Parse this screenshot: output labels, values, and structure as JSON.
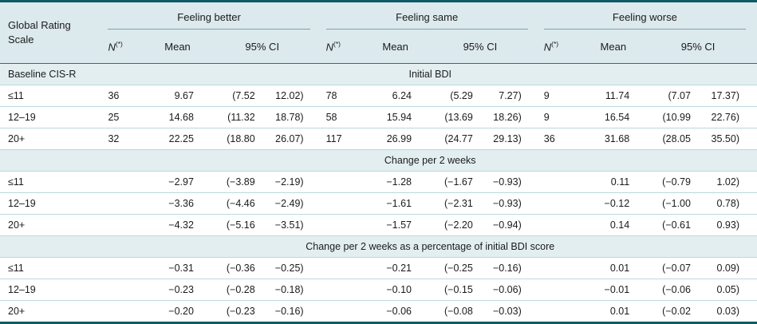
{
  "table": {
    "corner_label": "Global Rating Scale",
    "groups": [
      {
        "key": "better",
        "label": "Feeling better"
      },
      {
        "key": "same",
        "label": "Feeling same"
      },
      {
        "key": "worse",
        "label": "Feeling worse"
      }
    ],
    "sub_headers": {
      "n": "N",
      "n_sup": "(*)",
      "mean": "Mean",
      "ci": "95% CI"
    },
    "sections": [
      {
        "left_label": "Baseline CIS-R",
        "title": "Initial BDI",
        "rows": [
          {
            "label": "≤11",
            "groups": [
              {
                "n": "36",
                "mean": "9.67",
                "ci_lo": "(7.52",
                "ci_hi": "12.02)"
              },
              {
                "n": "78",
                "mean": "6.24",
                "ci_lo": "(5.29",
                "ci_hi": "7.27)"
              },
              {
                "n": "9",
                "mean": "11.74",
                "ci_lo": "(7.07",
                "ci_hi": "17.37)"
              }
            ]
          },
          {
            "label": "12–19",
            "groups": [
              {
                "n": "25",
                "mean": "14.68",
                "ci_lo": "(11.32",
                "ci_hi": "18.78)"
              },
              {
                "n": "58",
                "mean": "15.94",
                "ci_lo": "(13.69",
                "ci_hi": "18.26)"
              },
              {
                "n": "9",
                "mean": "16.54",
                "ci_lo": "(10.99",
                "ci_hi": "22.76)"
              }
            ]
          },
          {
            "label": "20+",
            "groups": [
              {
                "n": "32",
                "mean": "22.25",
                "ci_lo": "(18.80",
                "ci_hi": "26.07)"
              },
              {
                "n": "117",
                "mean": "26.99",
                "ci_lo": "(24.77",
                "ci_hi": "29.13)"
              },
              {
                "n": "36",
                "mean": "31.68",
                "ci_lo": "(28.05",
                "ci_hi": "35.50)"
              }
            ]
          }
        ]
      },
      {
        "left_label": "",
        "title": "Change per 2 weeks",
        "rows": [
          {
            "label": "≤11",
            "groups": [
              {
                "n": "",
                "mean": "−2.97",
                "ci_lo": "(−3.89",
                "ci_hi": "−2.19)"
              },
              {
                "n": "",
                "mean": "−1.28",
                "ci_lo": "(−1.67",
                "ci_hi": "−0.93)"
              },
              {
                "n": "",
                "mean": "0.11",
                "ci_lo": "(−0.79",
                "ci_hi": "1.02)"
              }
            ]
          },
          {
            "label": "12–19",
            "groups": [
              {
                "n": "",
                "mean": "−3.36",
                "ci_lo": "(−4.46",
                "ci_hi": "−2.49)"
              },
              {
                "n": "",
                "mean": "−1.61",
                "ci_lo": "(−2.31",
                "ci_hi": "−0.93)"
              },
              {
                "n": "",
                "mean": "−0.12",
                "ci_lo": "(−1.00",
                "ci_hi": "0.78)"
              }
            ]
          },
          {
            "label": "20+",
            "groups": [
              {
                "n": "",
                "mean": "−4.32",
                "ci_lo": "(−5.16",
                "ci_hi": "−3.51)"
              },
              {
                "n": "",
                "mean": "−1.57",
                "ci_lo": "(−2.20",
                "ci_hi": "−0.94)"
              },
              {
                "n": "",
                "mean": "0.14",
                "ci_lo": "(−0.61",
                "ci_hi": "0.93)"
              }
            ]
          }
        ]
      },
      {
        "left_label": "",
        "title": "Change per 2 weeks as a percentage of initial BDI score",
        "rows": [
          {
            "label": "≤11",
            "groups": [
              {
                "n": "",
                "mean": "−0.31",
                "ci_lo": "(−0.36",
                "ci_hi": "−0.25)"
              },
              {
                "n": "",
                "mean": "−0.21",
                "ci_lo": "(−0.25",
                "ci_hi": "−0.16)"
              },
              {
                "n": "",
                "mean": "0.01",
                "ci_lo": "(−0.07",
                "ci_hi": "0.09)"
              }
            ]
          },
          {
            "label": "12–19",
            "groups": [
              {
                "n": "",
                "mean": "−0.23",
                "ci_lo": "(−0.28",
                "ci_hi": "−0.18)"
              },
              {
                "n": "",
                "mean": "−0.10",
                "ci_lo": "(−0.15",
                "ci_hi": "−0.06)"
              },
              {
                "n": "",
                "mean": "−0.01",
                "ci_lo": "(−0.06",
                "ci_hi": "0.05)"
              }
            ]
          },
          {
            "label": "20+",
            "groups": [
              {
                "n": "",
                "mean": "−0.20",
                "ci_lo": "(−0.23",
                "ci_hi": "−0.16)"
              },
              {
                "n": "",
                "mean": "−0.06",
                "ci_lo": "(−0.08",
                "ci_hi": "−0.03)"
              },
              {
                "n": "",
                "mean": "0.01",
                "ci_lo": "(−0.02",
                "ci_hi": "0.03)"
              }
            ]
          }
        ]
      }
    ],
    "colors": {
      "header_bg": "#dce9ed",
      "section_bg": "#e3eef1",
      "rule_dark": "#0f5a64",
      "rule_medium": "#2e6f79",
      "rule_light": "#bcd8dd",
      "group_underline": "#7aa5ad"
    }
  }
}
